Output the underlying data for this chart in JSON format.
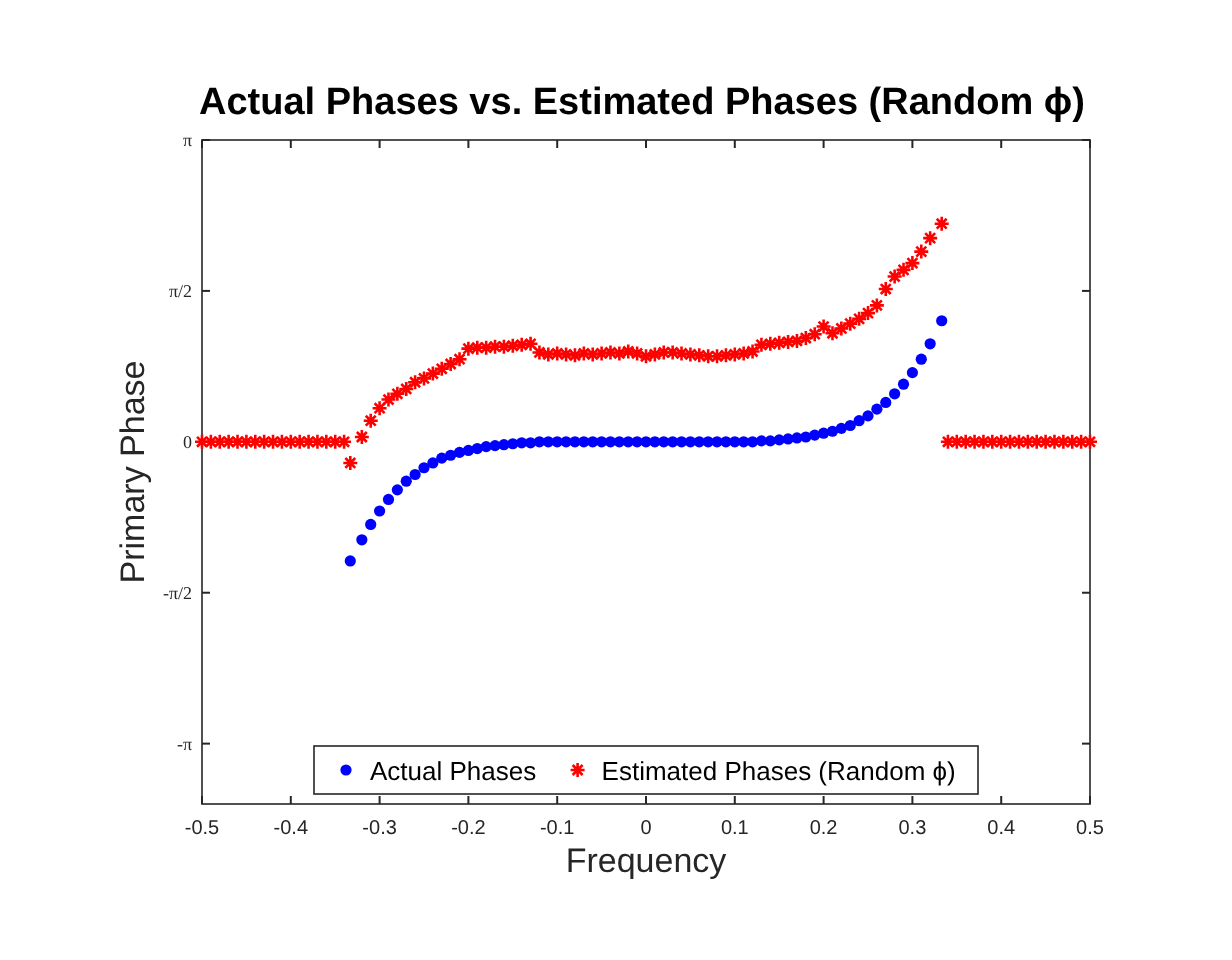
{
  "chart_data": {
    "type": "scatter",
    "title": "Actual Phases vs. Estimated Phases (Random ϕ)",
    "xlabel": "Frequency",
    "ylabel": "Primary Phase",
    "xlim": [
      -0.5,
      0.5
    ],
    "xticks": [
      -0.5,
      -0.4,
      -0.3,
      -0.2,
      -0.1,
      0,
      0.1,
      0.2,
      0.3,
      0.4,
      0.5
    ],
    "ylim": [
      -3.77,
      3.1416
    ],
    "yticks": [
      {
        "value": -3.1416,
        "label": "-π"
      },
      {
        "value": -1.5708,
        "label": "-π/2"
      },
      {
        "value": 0,
        "label": "0"
      },
      {
        "value": 1.5708,
        "label": "π/2"
      },
      {
        "value": 3.1416,
        "label": "π"
      }
    ],
    "grid": false,
    "legend": "bottom",
    "series": [
      {
        "name": "Actual Phases",
        "color": "#0000ff",
        "marker": "circle",
        "x": [
          -0.333,
          -0.32,
          -0.31,
          -0.3,
          -0.29,
          -0.28,
          -0.27,
          -0.26,
          -0.25,
          -0.24,
          -0.23,
          -0.22,
          -0.21,
          -0.2,
          -0.19,
          -0.18,
          -0.17,
          -0.16,
          -0.15,
          -0.14,
          -0.13,
          -0.12,
          -0.11,
          -0.1,
          -0.09,
          -0.08,
          -0.07,
          -0.06,
          -0.05,
          -0.04,
          -0.03,
          -0.02,
          -0.01,
          0,
          0.01,
          0.02,
          0.03,
          0.04,
          0.05,
          0.06,
          0.07,
          0.08,
          0.09,
          0.1,
          0.11,
          0.12,
          0.13,
          0.14,
          0.15,
          0.16,
          0.17,
          0.18,
          0.19,
          0.2,
          0.21,
          0.22,
          0.23,
          0.24,
          0.25,
          0.26,
          0.27,
          0.28,
          0.29,
          0.3,
          0.31,
          0.32,
          0.333
        ],
        "values": [
          -1.24,
          -1.02,
          -0.86,
          -0.72,
          -0.6,
          -0.5,
          -0.41,
          -0.34,
          -0.27,
          -0.22,
          -0.17,
          -0.14,
          -0.11,
          -0.09,
          -0.07,
          -0.05,
          -0.04,
          -0.03,
          -0.02,
          -0.01,
          -0.01,
          0,
          0,
          0,
          0,
          0,
          0,
          0,
          0,
          0,
          0,
          0,
          0,
          0,
          0,
          0,
          0,
          0,
          0,
          0,
          0,
          0,
          0,
          0,
          0,
          0,
          0.01,
          0.01,
          0.02,
          0.03,
          0.04,
          0.05,
          0.07,
          0.09,
          0.11,
          0.14,
          0.17,
          0.22,
          0.27,
          0.34,
          0.41,
          0.5,
          0.6,
          0.72,
          0.86,
          1.02,
          1.26
        ]
      },
      {
        "name": "Estimated Phases (Random ϕ)",
        "color": "#ff0000",
        "marker": "cross",
        "x": [
          -0.5,
          -0.49,
          -0.48,
          -0.47,
          -0.46,
          -0.45,
          -0.44,
          -0.43,
          -0.42,
          -0.41,
          -0.4,
          -0.39,
          -0.38,
          -0.37,
          -0.36,
          -0.35,
          -0.34,
          -0.333,
          -0.32,
          -0.31,
          -0.3,
          -0.29,
          -0.28,
          -0.27,
          -0.26,
          -0.25,
          -0.24,
          -0.23,
          -0.22,
          -0.21,
          -0.2,
          -0.19,
          -0.18,
          -0.17,
          -0.16,
          -0.15,
          -0.14,
          -0.13,
          -0.12,
          -0.11,
          -0.1,
          -0.09,
          -0.08,
          -0.07,
          -0.06,
          -0.05,
          -0.04,
          -0.03,
          -0.02,
          -0.01,
          0,
          0.01,
          0.02,
          0.03,
          0.04,
          0.05,
          0.06,
          0.07,
          0.08,
          0.09,
          0.1,
          0.11,
          0.12,
          0.13,
          0.14,
          0.15,
          0.16,
          0.17,
          0.18,
          0.19,
          0.2,
          0.21,
          0.22,
          0.23,
          0.24,
          0.25,
          0.26,
          0.27,
          0.28,
          0.29,
          0.3,
          0.31,
          0.32,
          0.333,
          0.34,
          0.35,
          0.36,
          0.37,
          0.38,
          0.39,
          0.4,
          0.41,
          0.42,
          0.43,
          0.44,
          0.45,
          0.46,
          0.47,
          0.48,
          0.49,
          0.5
        ],
        "values": [
          0,
          0,
          0,
          0,
          0,
          0,
          0,
          0,
          0,
          0,
          0,
          0,
          0,
          0,
          0,
          0,
          0,
          -0.22,
          0.05,
          0.22,
          0.35,
          0.44,
          0.5,
          0.55,
          0.62,
          0.66,
          0.71,
          0.76,
          0.81,
          0.86,
          0.97,
          0.98,
          0.98,
          0.99,
          0.99,
          1.0,
          1.01,
          1.02,
          0.93,
          0.91,
          0.92,
          0.91,
          0.9,
          0.92,
          0.91,
          0.92,
          0.93,
          0.92,
          0.94,
          0.92,
          0.89,
          0.91,
          0.93,
          0.93,
          0.92,
          0.91,
          0.9,
          0.89,
          0.89,
          0.9,
          0.91,
          0.92,
          0.94,
          1.01,
          1.02,
          1.03,
          1.04,
          1.05,
          1.08,
          1.12,
          1.2,
          1.13,
          1.18,
          1.23,
          1.28,
          1.34,
          1.42,
          1.59,
          1.72,
          1.79,
          1.86,
          1.98,
          2.12,
          2.27,
          0,
          0,
          0,
          0,
          0,
          0,
          0,
          0,
          0,
          0,
          0,
          0,
          0,
          0,
          0,
          0,
          0
        ]
      }
    ]
  }
}
